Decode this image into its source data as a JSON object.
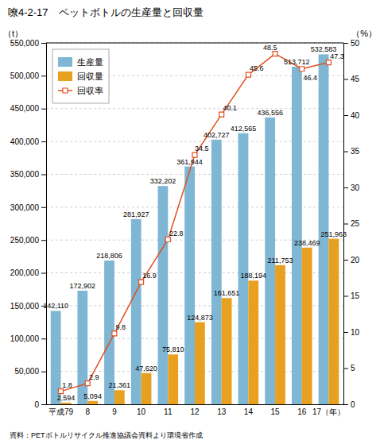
{
  "chart_data": {
    "type": "bar",
    "title": "嘹4-2-17　ペットボトルの生産量と回収量",
    "annotations": [
      "資料：PETボトルリサイクル推進協議会資料より環境省作成"
    ],
    "categories": [
      "平成79",
      "8",
      "9",
      "10",
      "11",
      "12",
      "13",
      "14",
      "15",
      "16",
      "17（年）"
    ],
    "series": [
      {
        "name": "生産量",
        "type": "bar",
        "color": "#7eb6d4",
        "values": [
          142110,
          172902,
          218806,
          281927,
          332202,
          361944,
          402727,
          412565,
          436556,
          513712,
          532583
        ],
        "value_labels": [
          "142,110",
          "172,902",
          "218,806",
          "281,927",
          "332,202",
          "361,944",
          "402,727",
          "412,565",
          "436,556",
          "513,712",
          "532,583"
        ]
      },
      {
        "name": "回収量",
        "type": "bar",
        "color": "#e8a020",
        "values": [
          2594,
          5094,
          21361,
          47620,
          75810,
          124873,
          161651,
          188194,
          211753,
          238469,
          251963
        ],
        "value_labels": [
          "2,594",
          "5,094",
          "21,361",
          "47,620",
          "75,810",
          "124,873",
          "161,651",
          "188,194",
          "211,753",
          "238,469",
          "251,963"
        ]
      },
      {
        "name": "回収率",
        "type": "line",
        "axis": "y2",
        "color": "#e05020",
        "marker": "square",
        "values": [
          1.8,
          2.9,
          9.8,
          16.9,
          22.8,
          34.5,
          40.1,
          45.6,
          48.5,
          46.4,
          47.3
        ]
      }
    ],
    "ylabel": "（t）",
    "y2label": "（%）",
    "ylim": [
      0,
      550000
    ],
    "yticks": [
      0,
      {
        "value": 50000,
        "label": "50,000"
      },
      {
        "value": 100000,
        "label": "100,000"
      },
      {
        "value": 150000,
        "label": "150,000"
      },
      {
        "value": 200000,
        "label": "200,000"
      },
      {
        "value": 250000,
        "label": "250,000"
      },
      {
        "value": 300000,
        "label": "300,000"
      },
      {
        "value": 350000,
        "label": "350,000"
      },
      {
        "value": 400000,
        "label": "400,000"
      },
      {
        "value": 450000,
        "label": "450,000"
      },
      {
        "value": 500000,
        "label": "500,000"
      },
      {
        "value": 550000,
        "label": "550,000"
      }
    ],
    "y2lim": [
      0,
      50
    ],
    "y2ticks": [
      0,
      5,
      10,
      15,
      20,
      25,
      30,
      35,
      40,
      45,
      50
    ],
    "grid": true,
    "legend": "upper left",
    "data_labels": true
  }
}
